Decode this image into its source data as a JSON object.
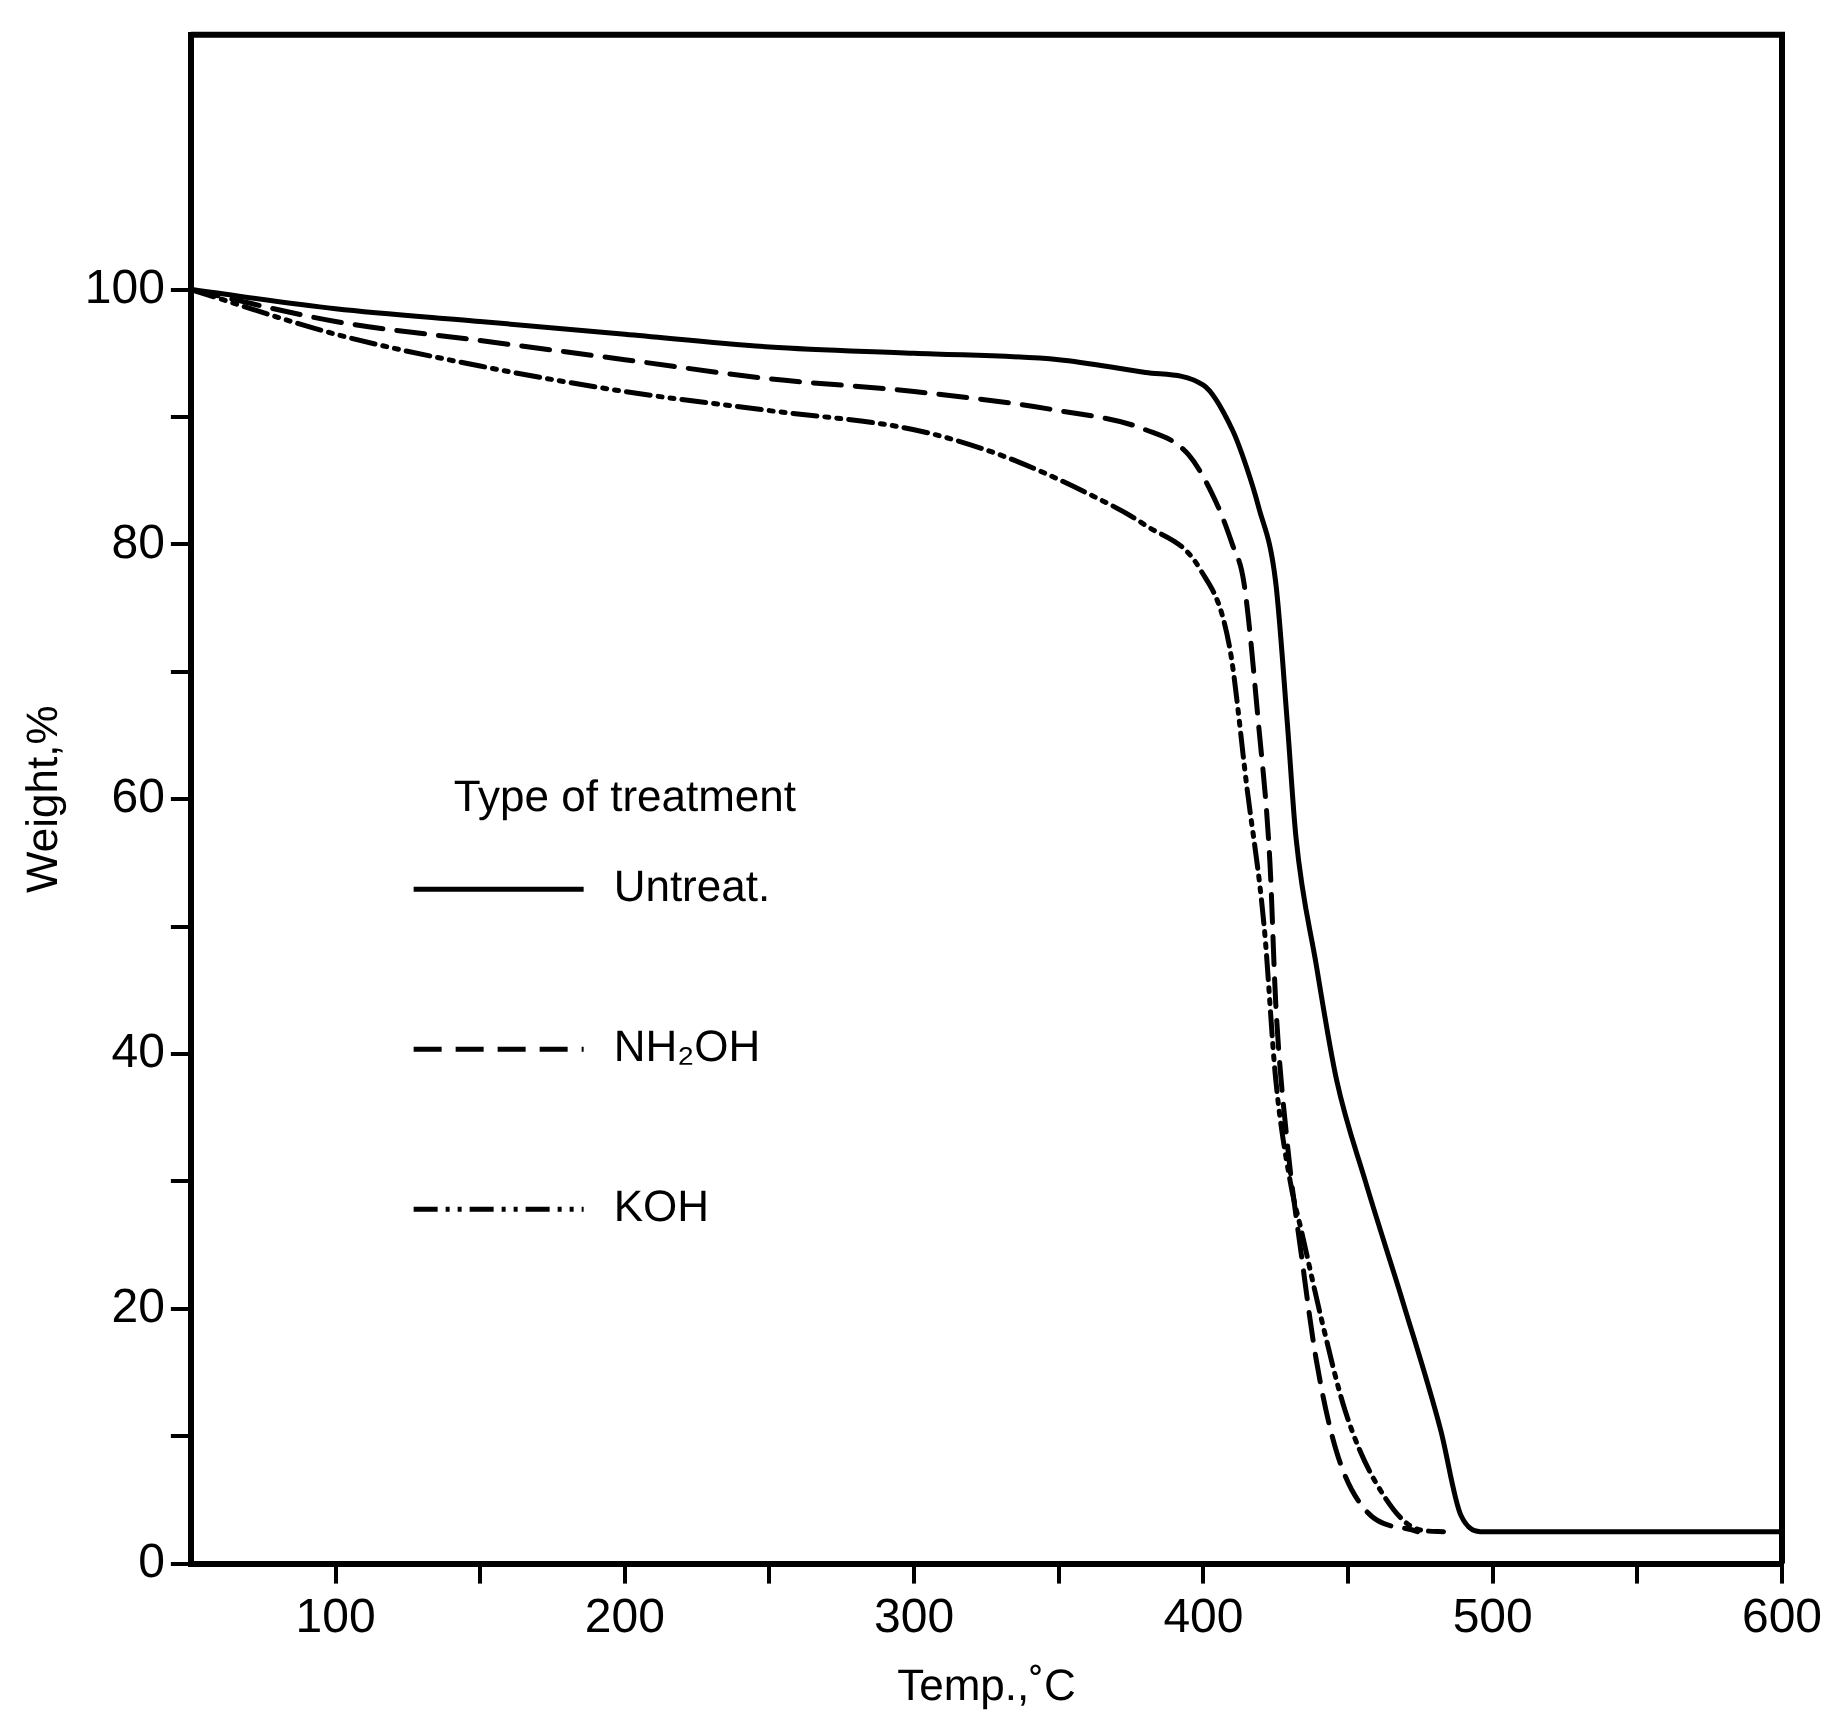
{
  "chart_data": {
    "type": "line",
    "xlabel": "Temp.,˚C",
    "ylabel": "Weight,%",
    "legend_title": "Type of treatment",
    "legend": "left",
    "grid": false,
    "marker": "none",
    "xlim": [
      50,
      600
    ],
    "xticks": [
      100,
      {
        "value": 150,
        "label": null
      },
      200,
      {
        "value": 250,
        "label": null
      },
      300,
      {
        "value": 350,
        "label": null
      },
      400,
      {
        "value": 450,
        "label": null
      },
      500,
      {
        "value": 550,
        "label": null
      },
      600
    ],
    "ylim": [
      0,
      120
    ],
    "yticks": [
      0,
      {
        "value": 10,
        "label": null
      },
      20,
      {
        "value": 30,
        "label": null
      },
      40,
      {
        "value": 50,
        "label": null
      },
      60,
      {
        "value": 70,
        "label": null
      },
      80,
      {
        "value": 90,
        "label": null
      },
      100
    ],
    "series": [
      {
        "name": "Untreat.",
        "color": "#000000",
        "line_style": "solid",
        "x": [
          50,
          100,
          150,
          200,
          250,
          300,
          350,
          380,
          400,
          410,
          415,
          419,
          425,
          429,
          432,
          439,
          446,
          456,
          469,
          482,
          489,
          497,
          600
        ],
        "values": [
          100,
          98.5,
          97.5,
          96.5,
          95.5,
          95,
          94.5,
          93.5,
          92.5,
          89,
          86,
          83,
          77,
          66,
          57,
          47,
          38,
          30,
          20.5,
          10.5,
          3.8,
          2.5,
          2.5
        ]
      },
      {
        "name": "NH₂OH",
        "color": "#000000",
        "line_style": "dashed",
        "x": [
          50,
          100,
          150,
          200,
          250,
          300,
          350,
          380,
          395,
          405,
          410,
          414,
          419,
          423,
          425,
          429,
          434,
          439,
          446,
          456,
          474
        ],
        "values": [
          100,
          97.5,
          96,
          94.5,
          93,
          92,
          90.5,
          89,
          87,
          83,
          80,
          77,
          66,
          55,
          44,
          33,
          24,
          16,
          8.8,
          4.2,
          2.5
        ]
      },
      {
        "name": "KOH",
        "color": "#000000",
        "line_style": "dashdot",
        "x": [
          50,
          100,
          150,
          200,
          250,
          300,
          330,
          360,
          380,
          399,
          409,
          415,
          421,
          425,
          430,
          434,
          441,
          449,
          459,
          474,
          483
        ],
        "values": [
          100,
          96.5,
          94,
          92,
          90.5,
          89,
          87,
          84,
          81.5,
          78,
          72,
          61,
          50,
          38,
          30,
          26,
          19,
          12,
          6.6,
          2.7,
          2.5
        ]
      }
    ]
  }
}
